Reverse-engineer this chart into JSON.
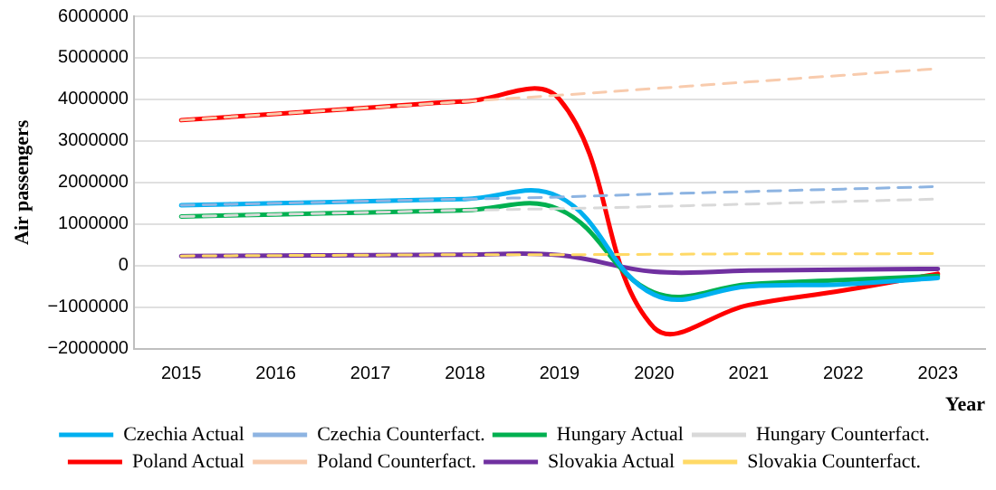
{
  "chart_data": {
    "type": "line",
    "xlabel": "Year",
    "ylabel": "Air passengers",
    "categories": [
      "2015",
      "2016",
      "2017",
      "2018",
      "2019",
      "2020",
      "2021",
      "2022",
      "2023"
    ],
    "ylim": [
      -2000000,
      6000000
    ],
    "yticks": [
      -2000000,
      -1000000,
      0,
      1000000,
      2000000,
      3000000,
      4000000,
      5000000,
      6000000
    ],
    "grid": "y",
    "legend": "bottom",
    "marker": "none",
    "series": [
      {
        "name": "Czechia Actual",
        "color": "#00b0f0",
        "line_style": "solid",
        "values": [
          1450000,
          1500000,
          1550000,
          1600000,
          1650000,
          -700000,
          -500000,
          -450000,
          -300000
        ]
      },
      {
        "name": "Czechia Counterfact.",
        "color": "#8db4e2",
        "line_style": "dashed",
        "values": [
          1450000,
          1500000,
          1550000,
          1600000,
          1650000,
          1720000,
          1780000,
          1840000,
          1900000
        ]
      },
      {
        "name": "Hungary Actual",
        "color": "#00b050",
        "line_style": "solid",
        "values": [
          1180000,
          1230000,
          1280000,
          1330000,
          1350000,
          -650000,
          -450000,
          -350000,
          -250000
        ]
      },
      {
        "name": "Hungary Counterfact.",
        "color": "#d9d9d9",
        "line_style": "dashed",
        "values": [
          1180000,
          1230000,
          1280000,
          1330000,
          1370000,
          1420000,
          1480000,
          1540000,
          1600000
        ]
      },
      {
        "name": "Poland Actual",
        "color": "#ff0000",
        "line_style": "solid",
        "values": [
          3500000,
          3650000,
          3800000,
          3950000,
          4000000,
          -1500000,
          -950000,
          -600000,
          -200000
        ]
      },
      {
        "name": "Poland Counterfact.",
        "color": "#f8cbad",
        "line_style": "dashed",
        "values": [
          3500000,
          3650000,
          3800000,
          3950000,
          4100000,
          4260000,
          4420000,
          4580000,
          4740000
        ]
      },
      {
        "name": "Slovakia Actual",
        "color": "#7030a0",
        "line_style": "solid",
        "values": [
          230000,
          240000,
          250000,
          260000,
          250000,
          -150000,
          -120000,
          -100000,
          -80000
        ]
      },
      {
        "name": "Slovakia Counterfact.",
        "color": "#ffd966",
        "line_style": "dashed",
        "values": [
          230000,
          240000,
          250000,
          260000,
          260000,
          270000,
          280000,
          280000,
          290000
        ]
      }
    ]
  }
}
